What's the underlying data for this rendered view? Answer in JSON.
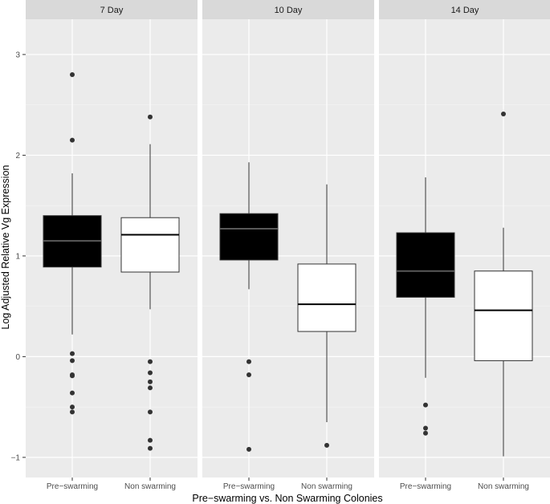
{
  "chart_data": {
    "type": "boxplot",
    "xlabel": "Pre−swarming vs. Non Swarming Colonies",
    "ylabel": "Log Adjusted Relative Vg Expression",
    "ylim": [
      -1.2,
      3.35
    ],
    "yticks": [
      -1,
      0,
      1,
      2,
      3
    ],
    "ytick_labels": [
      "−1",
      "0",
      "1",
      "2",
      "3"
    ],
    "grid": true,
    "legend": "none",
    "categories": [
      "Pre−swarming",
      "Non swarming"
    ],
    "colors": {
      "Pre−swarming": "#000000",
      "Non swarming": "#ffffff",
      "panel_bg": "#ebebeb",
      "strip_bg": "#d9d9d9",
      "median_on_dark": "#595959",
      "outlier": "#333333"
    },
    "panels": [
      {
        "label": "7 Day",
        "boxes": [
          {
            "group": "Pre−swarming",
            "whisker_low": 0.22,
            "q1": 0.89,
            "median": 1.15,
            "q3": 1.4,
            "whisker_high": 1.82,
            "outliers": [
              2.8,
              2.15,
              0.03,
              -0.04,
              -0.18,
              -0.19,
              -0.36,
              -0.5,
              -0.55
            ]
          },
          {
            "group": "Non swarming",
            "whisker_low": 0.47,
            "q1": 0.84,
            "median": 1.21,
            "q3": 1.38,
            "whisker_high": 2.11,
            "outliers": [
              2.38,
              -0.05,
              -0.16,
              -0.25,
              -0.31,
              -0.55,
              -0.83,
              -0.91
            ]
          }
        ]
      },
      {
        "label": "10 Day",
        "boxes": [
          {
            "group": "Pre−swarming",
            "whisker_low": 0.67,
            "q1": 0.96,
            "median": 1.27,
            "q3": 1.42,
            "whisker_high": 1.93,
            "outliers": [
              -0.05,
              -0.18,
              -0.92
            ]
          },
          {
            "group": "Non swarming",
            "whisker_low": -0.65,
            "q1": 0.25,
            "median": 0.52,
            "q3": 0.92,
            "whisker_high": 1.71,
            "outliers": [
              -0.88
            ]
          }
        ]
      },
      {
        "label": "14 Day",
        "boxes": [
          {
            "group": "Pre−swarming",
            "whisker_low": -0.21,
            "q1": 0.59,
            "median": 0.85,
            "q3": 1.23,
            "whisker_high": 1.78,
            "outliers": [
              -0.48,
              -0.71,
              -0.76
            ]
          },
          {
            "group": "Non swarming",
            "whisker_low": -0.99,
            "q1": -0.04,
            "median": 0.46,
            "q3": 0.85,
            "whisker_high": 1.28,
            "outliers": [
              2.41
            ]
          }
        ]
      }
    ]
  }
}
